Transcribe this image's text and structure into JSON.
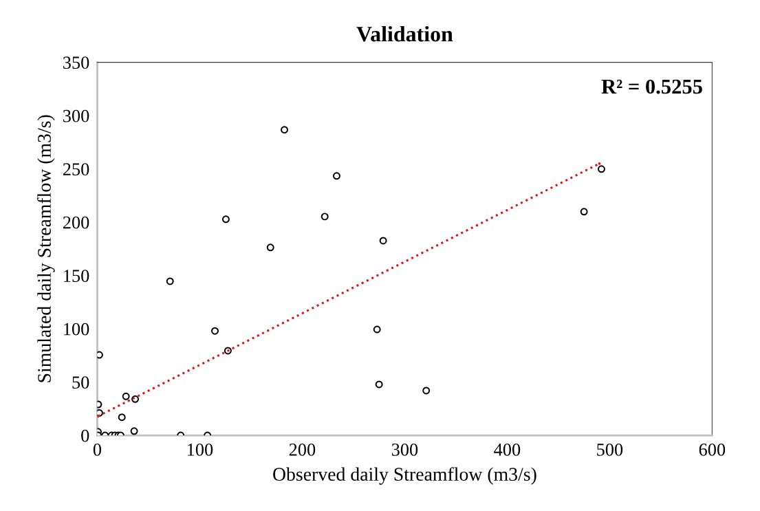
{
  "chart_data": {
    "type": "scatter",
    "title": "Validation",
    "xlabel": "Observed daily Streamflow (m3/s)",
    "ylabel": "Simulated daily Streamflow (m3/s)",
    "xlim": [
      0,
      600
    ],
    "ylim": [
      0,
      350
    ],
    "xticks": [
      0,
      100,
      200,
      300,
      400,
      500,
      600
    ],
    "yticks": [
      0,
      50,
      100,
      150,
      200,
      250,
      300,
      350
    ],
    "grid": false,
    "annotations": [
      "R² = 0.5255"
    ],
    "series": [
      {
        "color": "#000000",
        "marker": "circle",
        "x": [
          2,
          182.6,
          233.6,
          492,
          475,
          222,
          125.5,
          279,
          169,
          71,
          114.8,
          273,
          127.5,
          275,
          321,
          1,
          2,
          28,
          37,
          24,
          0.7,
          36,
          0.8,
          7.6,
          13.9,
          17.2,
          20.5,
          22.8,
          81.4,
          107.5
        ],
        "values": [
          75.5,
          286.7,
          243.4,
          249.9,
          209.9,
          205.3,
          202.8,
          182.7,
          176.3,
          144.6,
          98,
          99.4,
          79.4,
          47.8,
          42,
          29,
          21,
          36.6,
          34,
          17,
          3.4,
          4,
          0,
          0,
          0,
          0,
          0,
          0,
          0,
          0
        ]
      },
      {
        "type": "line",
        "color": "#d7191c",
        "line_style": "dotted",
        "marker": "none",
        "x": [
          0.7,
          490
        ],
        "values": [
          18,
          255
        ]
      }
    ]
  }
}
